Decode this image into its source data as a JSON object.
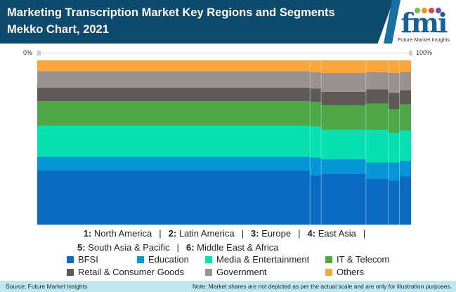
{
  "header": {
    "title": "Marketing Transcription Market Key Regions and Segments Mekko Chart, 2021",
    "logo_text": "fmi",
    "logo_subtitle": "Future Market Insights"
  },
  "footer": {
    "source": "Source: Future Market Insights",
    "note": "Note: Market shares are not depicted as per the actual scale and are only for illustration purposes."
  },
  "chart_data": {
    "type": "mekko",
    "title": "Marketing Transcription Market Key Regions and Segments Mekko Chart, 2021",
    "x_axis": {
      "min_label": "0%",
      "max_label": "100%"
    },
    "regions": [
      {
        "num": "1:",
        "name": "North America",
        "width": 73
      },
      {
        "num": "2:",
        "name": "Latin America",
        "width": 3
      },
      {
        "num": "3:",
        "name": "Europe",
        "width": 12
      },
      {
        "num": "4:",
        "name": "East Asia",
        "width": 6
      },
      {
        "num": "5:",
        "name": "South Asia & Pacific",
        "width": 3
      },
      {
        "num": "6:",
        "name": "Middle East & Africa",
        "width": 3
      }
    ],
    "series": [
      {
        "name": "BFSI",
        "color": "#0a6bc2",
        "values": [
          33,
          30,
          31,
          28,
          27,
          29.5
        ]
      },
      {
        "name": "Education",
        "color": "#0795d6",
        "values": [
          8.5,
          11,
          9,
          10,
          11,
          9.5
        ]
      },
      {
        "name": "Media & Entertainment",
        "color": "#06e0b0",
        "values": [
          19,
          19,
          18,
          20,
          18,
          18.5
        ]
      },
      {
        "name": "IT & Telecom",
        "color": "#4fa845",
        "values": [
          15,
          15,
          15,
          16,
          14.5,
          16
        ]
      },
      {
        "name": "Retail & Consumer Goods",
        "color": "#5f5a58",
        "values": [
          8,
          8,
          8,
          8.5,
          10,
          8.5
        ]
      },
      {
        "name": "Government",
        "color": "#9a9290",
        "values": [
          10,
          10,
          11.5,
          10.5,
          12,
          11
        ]
      },
      {
        "name": "Others",
        "color": "#fba63a",
        "values": [
          6.5,
          7,
          7.5,
          7,
          7.5,
          7
        ]
      }
    ]
  }
}
